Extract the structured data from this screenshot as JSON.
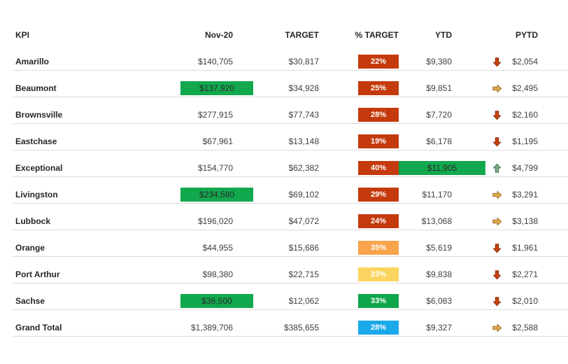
{
  "header": {
    "columns": [
      "KPI",
      "Nov-20",
      "TARGET",
      "% TARGET",
      "YTD",
      "PYTD"
    ]
  },
  "colors": {
    "badge_red": "#C43A0C",
    "badge_orange": "#F8A44B",
    "badge_yellow": "#FBD55F",
    "badge_green": "#0FA64B",
    "badge_blue": "#1BA9E9",
    "highlight_green": "#12A84E",
    "arrow_down_fill": "#C6400F",
    "arrow_down_stroke": "#8E2B08",
    "arrow_right_fill": "#DCA94E",
    "arrow_right_stroke": "#9C742C",
    "arrow_up_fill": "#7CA98A",
    "arrow_up_stroke": "#46704F",
    "row_line": "#DDDDDD",
    "text_header": "#262626",
    "text_value": "#3F3F3F"
  },
  "rows": [
    {
      "kpi": "Amarillo",
      "nov20": "$140,705",
      "nov20_highlight": false,
      "target": "$30,817",
      "pct": "22%",
      "pct_color": "red",
      "ytd": "$9,380",
      "ytd_highlight": false,
      "arrow": "down",
      "pytd": "$2,054"
    },
    {
      "kpi": "Beaumont",
      "nov20": "$137,920",
      "nov20_highlight": true,
      "target": "$34,928",
      "pct": "25%",
      "pct_color": "red",
      "ytd": "$9,851",
      "ytd_highlight": false,
      "arrow": "right",
      "pytd": "$2,495"
    },
    {
      "kpi": "Brownsville",
      "nov20": "$277,915",
      "nov20_highlight": false,
      "target": "$77,743",
      "pct": "28%",
      "pct_color": "red",
      "ytd": "$7,720",
      "ytd_highlight": false,
      "arrow": "down",
      "pytd": "$2,160"
    },
    {
      "kpi": "Eastchase",
      "nov20": "$67,961",
      "nov20_highlight": false,
      "target": "$13,148",
      "pct": "19%",
      "pct_color": "red",
      "ytd": "$6,178",
      "ytd_highlight": false,
      "arrow": "down",
      "pytd": "$1,195"
    },
    {
      "kpi": "Exceptional",
      "nov20": "$154,770",
      "nov20_highlight": false,
      "target": "$62,382",
      "pct": "40%",
      "pct_color": "red",
      "ytd": "$11,905",
      "ytd_highlight": true,
      "arrow": "up",
      "pytd": "$4,799"
    },
    {
      "kpi": "Livingston",
      "nov20": "$234,580",
      "nov20_highlight": true,
      "target": "$69,102",
      "pct": "29%",
      "pct_color": "red",
      "ytd": "$11,170",
      "ytd_highlight": false,
      "arrow": "right",
      "pytd": "$3,291"
    },
    {
      "kpi": "Lubbock",
      "nov20": "$196,020",
      "nov20_highlight": false,
      "target": "$47,072",
      "pct": "24%",
      "pct_color": "red",
      "ytd": "$13,068",
      "ytd_highlight": false,
      "arrow": "right",
      "pytd": "$3,138"
    },
    {
      "kpi": "Orange",
      "nov20": "$44,955",
      "nov20_highlight": false,
      "target": "$15,686",
      "pct": "35%",
      "pct_color": "orange",
      "ytd": "$5,619",
      "ytd_highlight": false,
      "arrow": "down",
      "pytd": "$1,961"
    },
    {
      "kpi": "Port Arthur",
      "nov20": "$98,380",
      "nov20_highlight": false,
      "target": "$22,715",
      "pct": "23%",
      "pct_color": "yellow",
      "ytd": "$9,838",
      "ytd_highlight": false,
      "arrow": "down",
      "pytd": "$2,271"
    },
    {
      "kpi": "Sachse",
      "nov20": "$36,500",
      "nov20_highlight": true,
      "target": "$12,062",
      "pct": "33%",
      "pct_color": "green",
      "ytd": "$6,083",
      "ytd_highlight": false,
      "arrow": "down",
      "pytd": "$2,010"
    },
    {
      "kpi": "Grand Total",
      "nov20": "$1,389,706",
      "nov20_highlight": false,
      "target": "$385,655",
      "pct": "28%",
      "pct_color": "blue",
      "ytd": "$9,327",
      "ytd_highlight": false,
      "arrow": "right",
      "pytd": "$2,588"
    }
  ]
}
